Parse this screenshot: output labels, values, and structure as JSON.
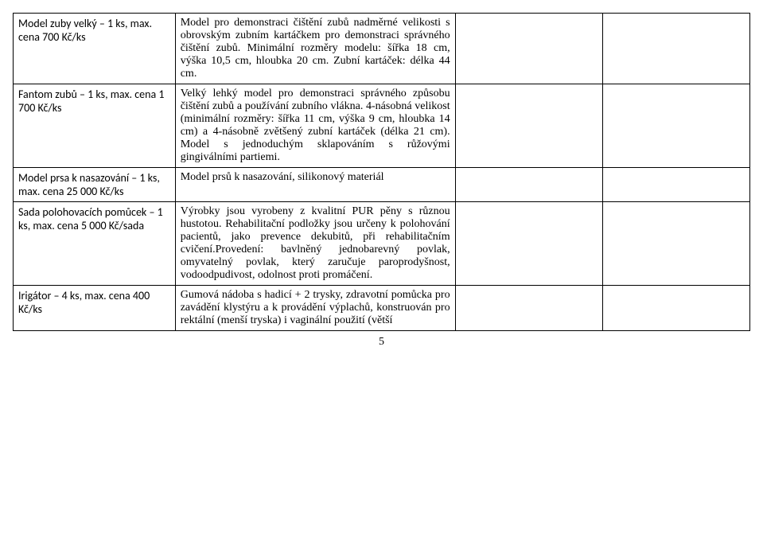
{
  "rows": [
    {
      "left": "Model zuby velký – 1 ks, max. cena 700 Kč/ks",
      "desc": "Model pro demonstraci čištění zubů nadměrné velikosti s obrovským zubním kartáčkem pro demonstraci správného čištění zubů. Minimální rozměry modelu: šířka 18 cm, výška 10,5 cm, hloubka 20 cm. Zubní kartáček: délka 44 cm."
    },
    {
      "left": "Fantom zubů – 1 ks, max. cena 1 700 Kč/ks",
      "desc": "Velký lehký model pro demonstraci správného způsobu čištění zubů a používání zubního vlákna. 4-násobná velikost (minimální rozměry: šířka 11 cm, výška 9 cm, hloubka 14 cm) a 4-násobně zvětšený zubní kartáček (délka 21 cm). Model s jednoduchým sklapováním s růžovými gingiválními partiemi."
    },
    {
      "left": "Model prsa k nasazování – 1 ks, max. cena 25 000 Kč/ks",
      "desc": "Model prsů k nasazování, silikonový materiál"
    },
    {
      "left": "Sada polohovacích pomůcek – 1 ks, max. cena 5 000 Kč/sada",
      "desc": "Výrobky jsou vyrobeny z kvalitní PUR pěny s různou hustotou. Rehabilitační podložky jsou určeny k polohování pacientů, jako prevence dekubitů, při rehabilitačním cvičení.Provedení: bavlněný jednobarevný povlak, omyvatelný povlak, který zaručuje paroprodyšnost, vodoodpudivost, odolnost proti promáčení."
    },
    {
      "left": "Irigátor – 4 ks, max. cena 400 Kč/ks",
      "desc": "Gumová nádoba s hadicí + 2 trysky, zdravotní pomůcka pro zavádění klystýru a k provádění výplachů, konstruován pro rektální (menší tryska) i vaginální použití (větší"
    }
  ],
  "pageNumber": "5"
}
